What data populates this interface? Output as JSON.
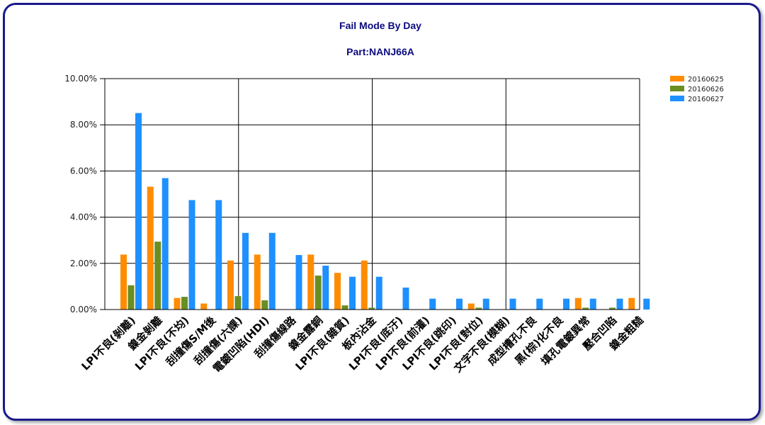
{
  "chart_data": {
    "type": "bar",
    "title": "Fail Mode By Day",
    "subtitle": "Part:NANJ66A",
    "xlabel": "",
    "ylabel": "",
    "ylim": [
      0,
      10
    ],
    "y_ticks": [
      "0.00%",
      "2.00%",
      "4.00%",
      "6.00%",
      "8.00%",
      "10.00%"
    ],
    "grid": true,
    "legend_position": "top-right",
    "categories": [
      "LPI不良(剝離)",
      "鎳金剝離",
      "LPI不良(不均)",
      "刮撞傷S/M後",
      "刮撞傷(六課)",
      "電鍍凹陷(HDI)",
      "刮撞傷線路",
      "鎳金露銅",
      "LPI不良(雜質)",
      "板內沾金",
      "LPI不良(底汙)",
      "LPI不良(前灌)",
      "LPI不良(跳印)",
      "LPI不良(對位)",
      "文字不良(模糊)",
      "成型槽孔不良",
      "黑(棕)化不良",
      "填孔電鍍異常",
      "壓合凹陷",
      "鎳金粗糙"
    ],
    "series": [
      {
        "name": "20160625",
        "color": "#ff8c00",
        "values": [
          2.38,
          5.32,
          0.5,
          0.26,
          2.12,
          2.38,
          0,
          2.38,
          1.59,
          2.12,
          0,
          0,
          0,
          0.26,
          0,
          0,
          0,
          0.5,
          0,
          0.5
        ]
      },
      {
        "name": "20160626",
        "color": "#6b8e23",
        "values": [
          1.05,
          2.94,
          0.55,
          0,
          0.58,
          0.4,
          0,
          1.47,
          0.18,
          0.08,
          0,
          0,
          0,
          0.08,
          0,
          0,
          0,
          0.08,
          0.08,
          0
        ]
      },
      {
        "name": "20160627",
        "color": "#1e90ff",
        "values": [
          8.51,
          5.69,
          4.74,
          4.74,
          3.32,
          3.32,
          2.36,
          1.9,
          1.42,
          1.42,
          0.95,
          0.47,
          0.47,
          0.47,
          0.47,
          0.47,
          0.47,
          0.47,
          0.47,
          0.47
        ]
      }
    ]
  }
}
